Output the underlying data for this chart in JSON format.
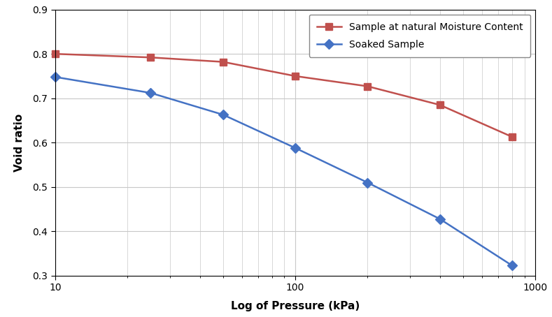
{
  "natural_x": [
    10,
    25,
    50,
    100,
    200,
    400,
    800
  ],
  "natural_y": [
    0.8,
    0.792,
    0.782,
    0.75,
    0.727,
    0.685,
    0.613
  ],
  "soaked_x": [
    10,
    25,
    50,
    100,
    200,
    400,
    800
  ],
  "soaked_y": [
    0.748,
    0.712,
    0.663,
    0.588,
    0.51,
    0.428,
    0.323
  ],
  "natural_color": "#C0504D",
  "soaked_color": "#4472C4",
  "natural_label": "Sample at natural Moisture Content",
  "soaked_label": "Soaked Sample",
  "xlabel": "Log of Pressure (kPa)",
  "ylabel": "Void ratio",
  "ylim": [
    0.3,
    0.9
  ],
  "xlim": [
    10,
    1000
  ],
  "yticks": [
    0.3,
    0.4,
    0.5,
    0.6,
    0.7,
    0.8,
    0.9
  ],
  "xticks": [
    10,
    100,
    1000
  ],
  "background_color": "#ffffff",
  "grid_color": "#c8c8c8",
  "label_fontsize": 11,
  "tick_fontsize": 10,
  "legend_fontsize": 10,
  "line_width": 1.8,
  "marker_size": 7
}
